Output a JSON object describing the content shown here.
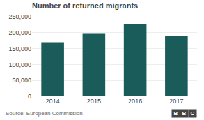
{
  "chart_data": {
    "type": "bar",
    "title": "Number of returned migrants",
    "categories": [
      "2014",
      "2015",
      "2016",
      "2017"
    ],
    "values": [
      170000,
      196000,
      226000,
      190000
    ],
    "color": "#1a5c5a",
    "ylim": [
      0,
      250000
    ],
    "yticks": [
      0,
      {
        "value": 50000,
        "label": "50,000"
      },
      {
        "value": 100000,
        "label": "100,000"
      },
      {
        "value": 150000,
        "label": "150,000"
      },
      {
        "value": 200000,
        "label": "200,000"
      },
      {
        "value": 250000,
        "label": "250,000"
      }
    ],
    "grid": true,
    "annotations": [
      "Source: European Commission",
      "BBC"
    ]
  }
}
